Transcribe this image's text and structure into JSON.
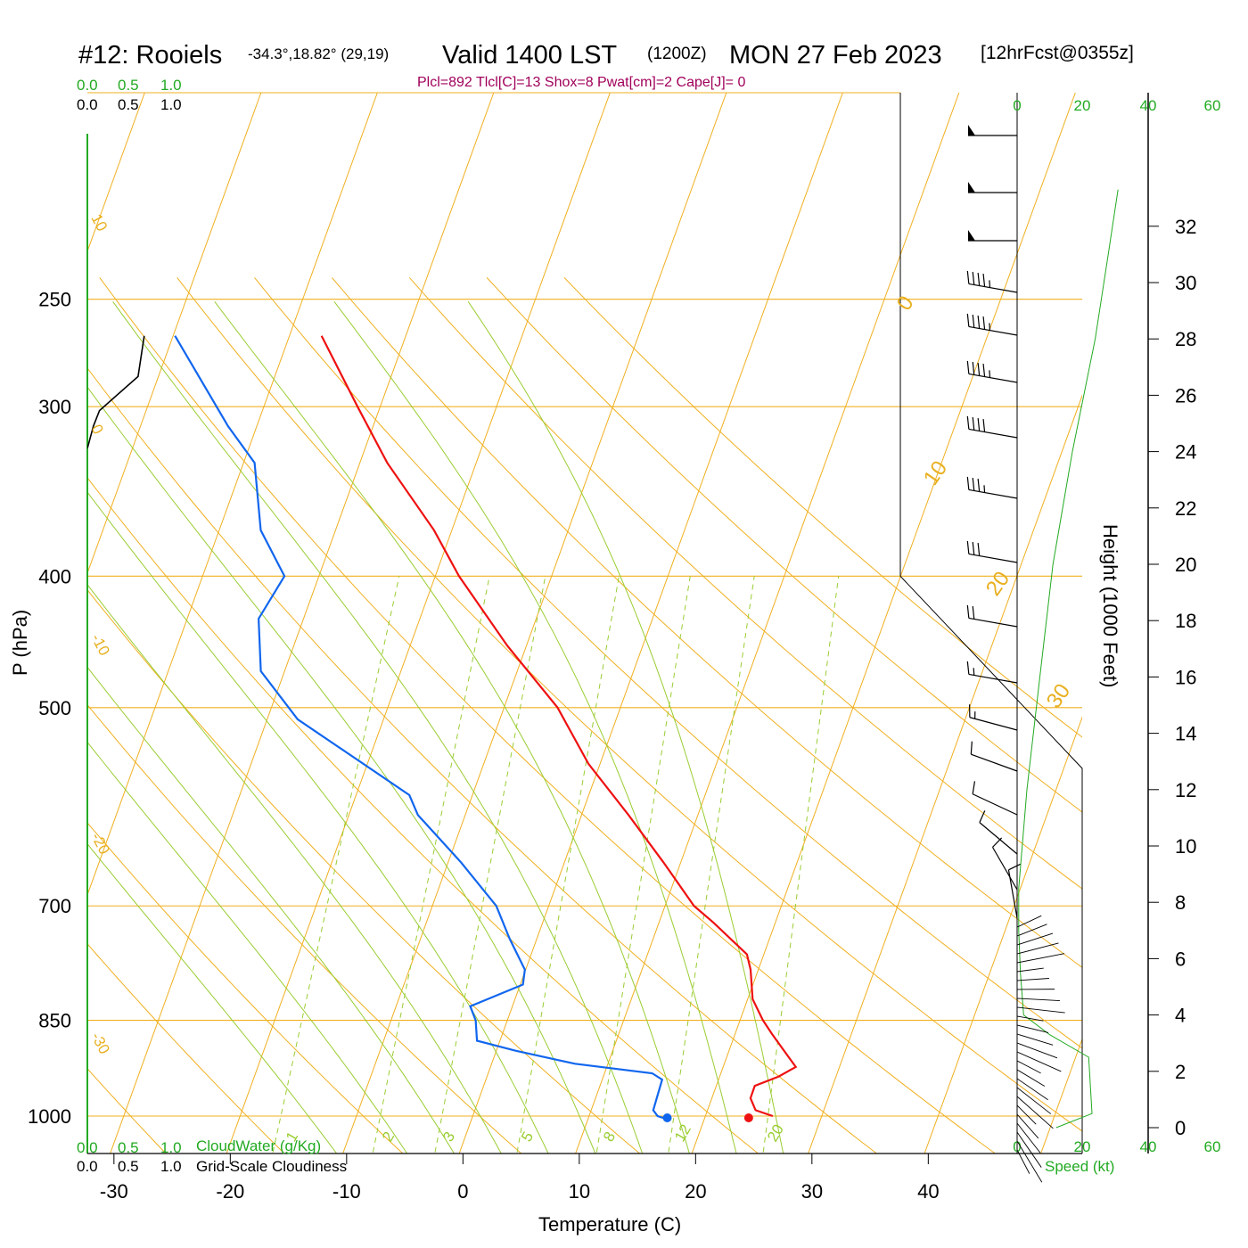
{
  "header": {
    "station": "#12: Rooiels",
    "coords": "-34.3°,18.82° (29,19)",
    "valid_prefix": "Valid 1400 LST",
    "valid_utc": "(1200Z)",
    "valid_date": "MON 27 Feb 2023",
    "forecast": "[12hrFcst@0355z]",
    "params": "Plcl=892 Tlcl[C]=13 Shox=8 Pwat[cm]=2 Cape[J]= 0"
  },
  "labels": {
    "p_axis": "P (hPa)",
    "t_axis": "Temperature (C)",
    "height_axis": "Height (1000 Feet)",
    "cloud_water": "CloudWater (g/Kg)",
    "cloudiness": "Grid-Scale Cloudiness",
    "speed": "Speed (kt)"
  },
  "colors": {
    "temperature": "#ee1111",
    "dewpoint": "#1166ee",
    "isotherm": "#f0b020",
    "dry_adiabat": "#f0b020",
    "moist_adiabat": "#9acd32",
    "mixing_ratio": "#9acd32",
    "height_profile": "#22aa22",
    "cloudiness": "#000000"
  },
  "chart_data": {
    "type": "line",
    "skewt": true,
    "pressure_ticks": [
      250,
      300,
      400,
      500,
      700,
      850,
      1000
    ],
    "pressure_tick_labels": [
      "250",
      "300",
      "400",
      "500",
      "700",
      "850",
      "1000"
    ],
    "temperature_ticks": [
      -30,
      -20,
      -10,
      0,
      10,
      20,
      30,
      40
    ],
    "temperature_tick_labels": [
      "-30",
      "-20",
      "-10",
      "0",
      "10",
      "20",
      "30",
      "40"
    ],
    "height_ticks": [
      0,
      2,
      4,
      6,
      8,
      10,
      12,
      14,
      16,
      18,
      20,
      22,
      24,
      26,
      28,
      30,
      32
    ],
    "height_tick_labels": [
      "0",
      "2",
      "4",
      "6",
      "8",
      "10",
      "12",
      "14",
      "16",
      "18",
      "20",
      "22",
      "24",
      "26",
      "28",
      "30",
      "32"
    ],
    "cloud_scale_labels": [
      "0.0",
      "0.5",
      "1.0"
    ],
    "speed_scale_labels": [
      "0",
      "20",
      "40",
      "60"
    ],
    "isotherm_labels": [
      "10",
      "0",
      "-10",
      "-20",
      "-30",
      "0",
      "10",
      "20",
      "30"
    ],
    "mixing_ratio_labels": [
      "1",
      "2",
      "3",
      "5",
      "8",
      "12",
      "20"
    ],
    "temperature_profile": [
      {
        "p": 1000,
        "t": 25.2
      },
      {
        "p": 990,
        "t": 23.5
      },
      {
        "p": 970,
        "t": 22.6
      },
      {
        "p": 950,
        "t": 22.5
      },
      {
        "p": 935,
        "t": 24.2
      },
      {
        "p": 920,
        "t": 25.3
      },
      {
        "p": 900,
        "t": 24.0
      },
      {
        "p": 870,
        "t": 22.0
      },
      {
        "p": 850,
        "t": 20.7
      },
      {
        "p": 820,
        "t": 19.0
      },
      {
        "p": 780,
        "t": 17.7
      },
      {
        "p": 760,
        "t": 16.8
      },
      {
        "p": 720,
        "t": 12.7
      },
      {
        "p": 700,
        "t": 10.4
      },
      {
        "p": 650,
        "t": 6.1
      },
      {
        "p": 600,
        "t": 1.3
      },
      {
        "p": 550,
        "t": -4.1
      },
      {
        "p": 500,
        "t": -8.9
      },
      {
        "p": 450,
        "t": -15.6
      },
      {
        "p": 400,
        "t": -22.4
      },
      {
        "p": 370,
        "t": -26.3
      },
      {
        "p": 330,
        "t": -32.9
      },
      {
        "p": 300,
        "t": -37.6
      },
      {
        "p": 266,
        "t": -43.4
      }
    ],
    "dewpoint_profile": [
      {
        "p": 1005,
        "t": 16.2
      },
      {
        "p": 1000,
        "t": 15.3
      },
      {
        "p": 990,
        "t": 14.7
      },
      {
        "p": 940,
        "t": 14.3
      },
      {
        "p": 930,
        "t": 13.2
      },
      {
        "p": 915,
        "t": 6.2
      },
      {
        "p": 895,
        "t": 0.6
      },
      {
        "p": 880,
        "t": -3.1
      },
      {
        "p": 850,
        "t": -4.0
      },
      {
        "p": 830,
        "t": -5.0
      },
      {
        "p": 800,
        "t": -1.3
      },
      {
        "p": 780,
        "t": -1.7
      },
      {
        "p": 740,
        "t": -4.2
      },
      {
        "p": 700,
        "t": -6.6
      },
      {
        "p": 650,
        "t": -11.3
      },
      {
        "p": 600,
        "t": -16.8
      },
      {
        "p": 580,
        "t": -18.3
      },
      {
        "p": 510,
        "t": -30.8
      },
      {
        "p": 470,
        "t": -35.8
      },
      {
        "p": 430,
        "t": -38.0
      },
      {
        "p": 400,
        "t": -37.4
      },
      {
        "p": 370,
        "t": -41.2
      },
      {
        "p": 330,
        "t": -44.3
      },
      {
        "p": 310,
        "t": -48.0
      },
      {
        "p": 266,
        "t": -56.0
      }
    ],
    "surface_temperature": {
      "p": 1003,
      "t": 23.2
    },
    "surface_dewpoint": {
      "p": 1003,
      "t": 16.2
    },
    "cloudiness_profile": [
      {
        "p": 266,
        "c": 0.75
      },
      {
        "p": 285,
        "c": 0.67
      },
      {
        "p": 302,
        "c": 0.16
      },
      {
        "p": 310,
        "c": 0.08
      },
      {
        "p": 322,
        "c": 0.0
      }
    ],
    "height_profile": [
      {
        "h": 0.0,
        "s": 12
      },
      {
        "h": 0.5,
        "s": 23
      },
      {
        "h": 2.5,
        "s": 22
      },
      {
        "h": 3.3,
        "s": 10
      },
      {
        "h": 4.0,
        "s": 2
      },
      {
        "h": 5.5,
        "s": 1
      },
      {
        "h": 7.0,
        "s": 0.5
      },
      {
        "h": 8.5,
        "s": 0.5
      },
      {
        "h": 12.0,
        "s": 3
      },
      {
        "h": 16.0,
        "s": 7
      },
      {
        "h": 20.0,
        "s": 11
      },
      {
        "h": 24.0,
        "s": 17
      },
      {
        "h": 28.0,
        "s": 24
      },
      {
        "h": 31.0,
        "s": 28
      },
      {
        "h": 33.3,
        "s": 31
      }
    ],
    "wind_barbs": [
      {
        "y": 152,
        "dir": 270,
        "kt": 50
      },
      {
        "y": 216,
        "dir": 270,
        "kt": 50
      },
      {
        "y": 270,
        "dir": 270,
        "kt": 50
      },
      {
        "y": 328,
        "dir": 280,
        "kt": 45
      },
      {
        "y": 376,
        "dir": 280,
        "kt": 45
      },
      {
        "y": 429,
        "dir": 280,
        "kt": 45
      },
      {
        "y": 491,
        "dir": 280,
        "kt": 40
      },
      {
        "y": 559,
        "dir": 280,
        "kt": 35
      },
      {
        "y": 631,
        "dir": 280,
        "kt": 30
      },
      {
        "y": 703,
        "dir": 280,
        "kt": 20
      },
      {
        "y": 766,
        "dir": 280,
        "kt": 15
      },
      {
        "y": 819,
        "dir": 285,
        "kt": 15
      },
      {
        "y": 865,
        "dir": 290,
        "kt": 10
      },
      {
        "y": 914,
        "dir": 295,
        "kt": 10
      },
      {
        "y": 958,
        "dir": 310,
        "kt": 10
      },
      {
        "y": 998,
        "dir": 330,
        "kt": 10
      },
      {
        "y": 1030,
        "dir": 350,
        "kt": 10
      }
    ]
  }
}
